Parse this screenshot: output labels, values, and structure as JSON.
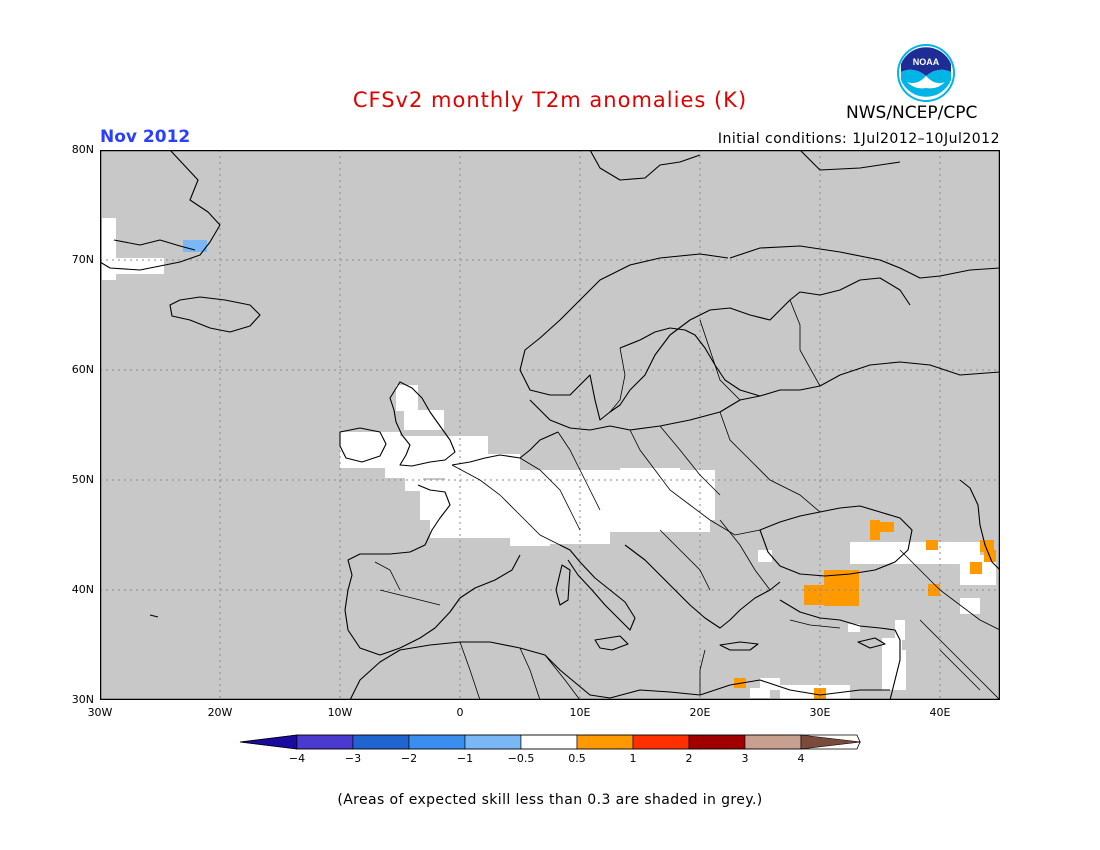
{
  "title": "CFSv2 monthly T2m anomalies (K)",
  "agency": "NWS/NCEP/CPC",
  "logo_text": "NOAA",
  "period": "Nov 2012",
  "initial_conditions": "Initial conditions: 1Jul2012–10Jul2012",
  "lat_labels": [
    "80N",
    "70N",
    "60N",
    "50N",
    "40N",
    "30N"
  ],
  "lon_labels": [
    "30W",
    "20W",
    "10W",
    "0",
    "10E",
    "20E",
    "30E",
    "40E"
  ],
  "colorbar": {
    "labels": [
      "−4",
      "−3",
      "−2",
      "−1",
      "−0.5",
      "0.5",
      "1",
      "2",
      "3",
      "4"
    ],
    "colors": [
      "#1a0aa0",
      "#4a3ad0",
      "#1f64d0",
      "#3a8ef0",
      "#7ab8f5",
      "#ffffff",
      "#ff9900",
      "#ff3000",
      "#a00000",
      "#c8a090",
      "#7a4a3a"
    ]
  },
  "footnote": "(Areas of expected skill less than 0.3 are shaded in grey.)",
  "colors": {
    "skill_grey": "#c8c8c8",
    "neutral": "#ffffff",
    "warm": "#ff9900",
    "cool": "#7ab8f5"
  }
}
